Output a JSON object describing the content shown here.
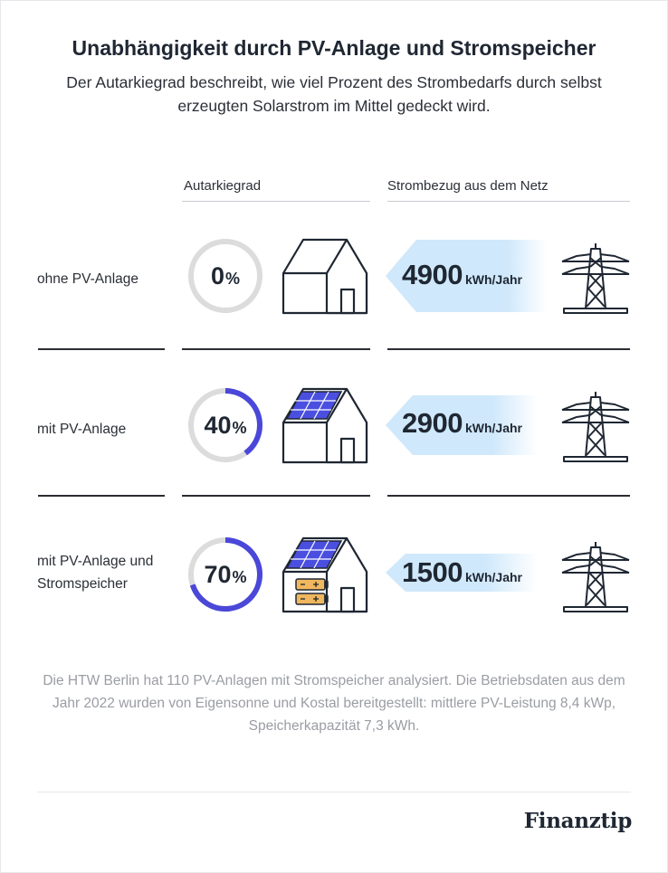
{
  "header": {
    "title": "Unabhängigkeit durch PV-Anlage und Stromspeicher",
    "subtitle": "Der Autarkiegrad beschreibt, wie viel Prozent des Strombedarfs durch selbst erzeugten Solarstrom im Mittel gedeckt wird."
  },
  "columns": {
    "autarky": "Autarkiegrad",
    "grid": "Strombezug aus dem Netz"
  },
  "rows": [
    {
      "label": "ohne PV-Anlage",
      "percent_text": "0",
      "kwh": "4900"
    },
    {
      "label": "mit PV-Anlage",
      "percent_text": "40",
      "kwh": "2900"
    },
    {
      "label": "mit PV-Anlage und Stromspeicher",
      "percent_text": "70",
      "kwh": "1500"
    }
  ],
  "units": {
    "percent": "%",
    "kwh": "kWh/Jahr"
  },
  "footnote": "Die HTW Berlin hat 110 PV-Anlagen mit Stromspeicher analysiert. Die Betriebsdaten aus dem Jahr 2022 wurden von Eigensonne und Kostal bereitgestellt: mittlere PV-Leistung 8,4 kWp, Speicherkapazität 7,3 kWh.",
  "brand": "Finanztip",
  "colors": {
    "gauge_fill": "#4a47d9",
    "gauge_track": "#dcdcdc",
    "arrow": "#cfe8fb",
    "panel": "#4a4fe0",
    "battery": "#f0b75e",
    "stroke": "#1f2733"
  },
  "chart_data": {
    "type": "table",
    "categories": [
      "ohne PV-Anlage",
      "mit PV-Anlage",
      "mit PV-Anlage und Stromspeicher"
    ],
    "series": [
      {
        "name": "Autarkiegrad",
        "unit": "%",
        "values": [
          0,
          40,
          70
        ]
      },
      {
        "name": "Strombezug aus dem Netz",
        "unit": "kWh/Jahr",
        "values": [
          4900,
          2900,
          1500
        ]
      }
    ]
  }
}
